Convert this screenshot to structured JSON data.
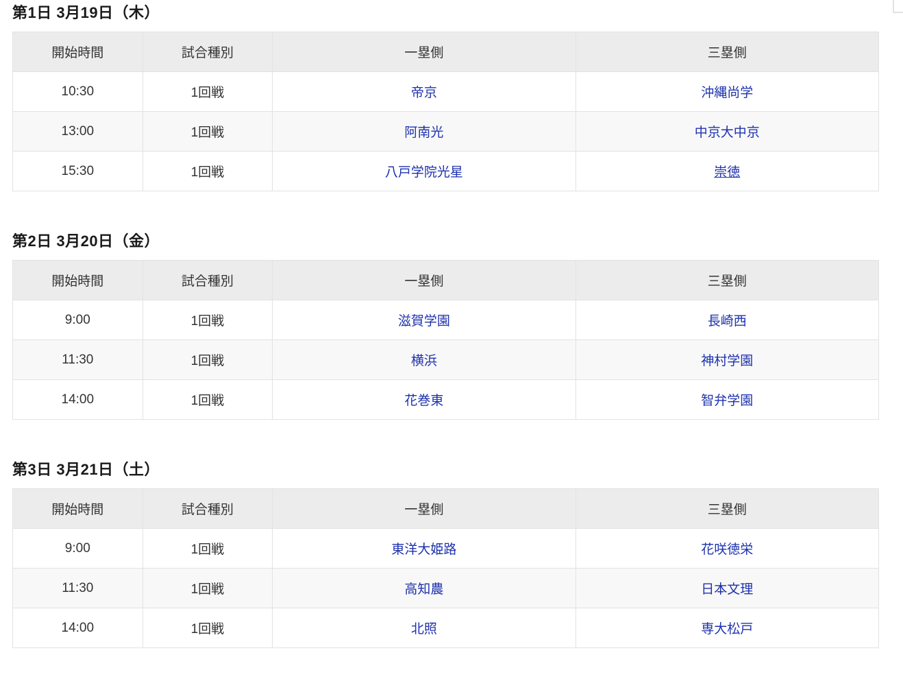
{
  "colors": {
    "link_blue": "#1e32ad",
    "header_bg": "#ececec",
    "stripe_bg": "#f8f8f8",
    "border": "#e2e2e2",
    "text": "#333333"
  },
  "days": [
    {
      "title": "第1日 3月19日（木）",
      "headers": [
        "開始時間",
        "試合種別",
        "一塁側",
        "三塁側"
      ],
      "rows": [
        {
          "time": "10:30",
          "type": "1回戦",
          "first": "帝京",
          "third": "沖縄尚学"
        },
        {
          "time": "13:00",
          "type": "1回戦",
          "first": "阿南光",
          "third": "中京大中京"
        },
        {
          "time": "15:30",
          "type": "1回戦",
          "first": "八戸学院光星",
          "third": "崇徳"
        }
      ]
    },
    {
      "title": "第2日 3月20日（金）",
      "headers": [
        "開始時間",
        "試合種別",
        "一塁側",
        "三塁側"
      ],
      "rows": [
        {
          "time": "9:00",
          "type": "1回戦",
          "first": "滋賀学園",
          "third": "長崎西"
        },
        {
          "time": "11:30",
          "type": "1回戦",
          "first": "横浜",
          "third": "神村学園"
        },
        {
          "time": "14:00",
          "type": "1回戦",
          "first": "花巻東",
          "third": "智弁学園"
        }
      ]
    },
    {
      "title": "第3日 3月21日（土）",
      "headers": [
        "開始時間",
        "試合種別",
        "一塁側",
        "三塁側"
      ],
      "rows": [
        {
          "time": "9:00",
          "type": "1回戦",
          "first": "東洋大姫路",
          "third": "花咲徳栄"
        },
        {
          "time": "11:30",
          "type": "1回戦",
          "first": "高知農",
          "third": "日本文理"
        },
        {
          "time": "14:00",
          "type": "1回戦",
          "first": "北照",
          "third": "専大松戸"
        }
      ]
    }
  ]
}
